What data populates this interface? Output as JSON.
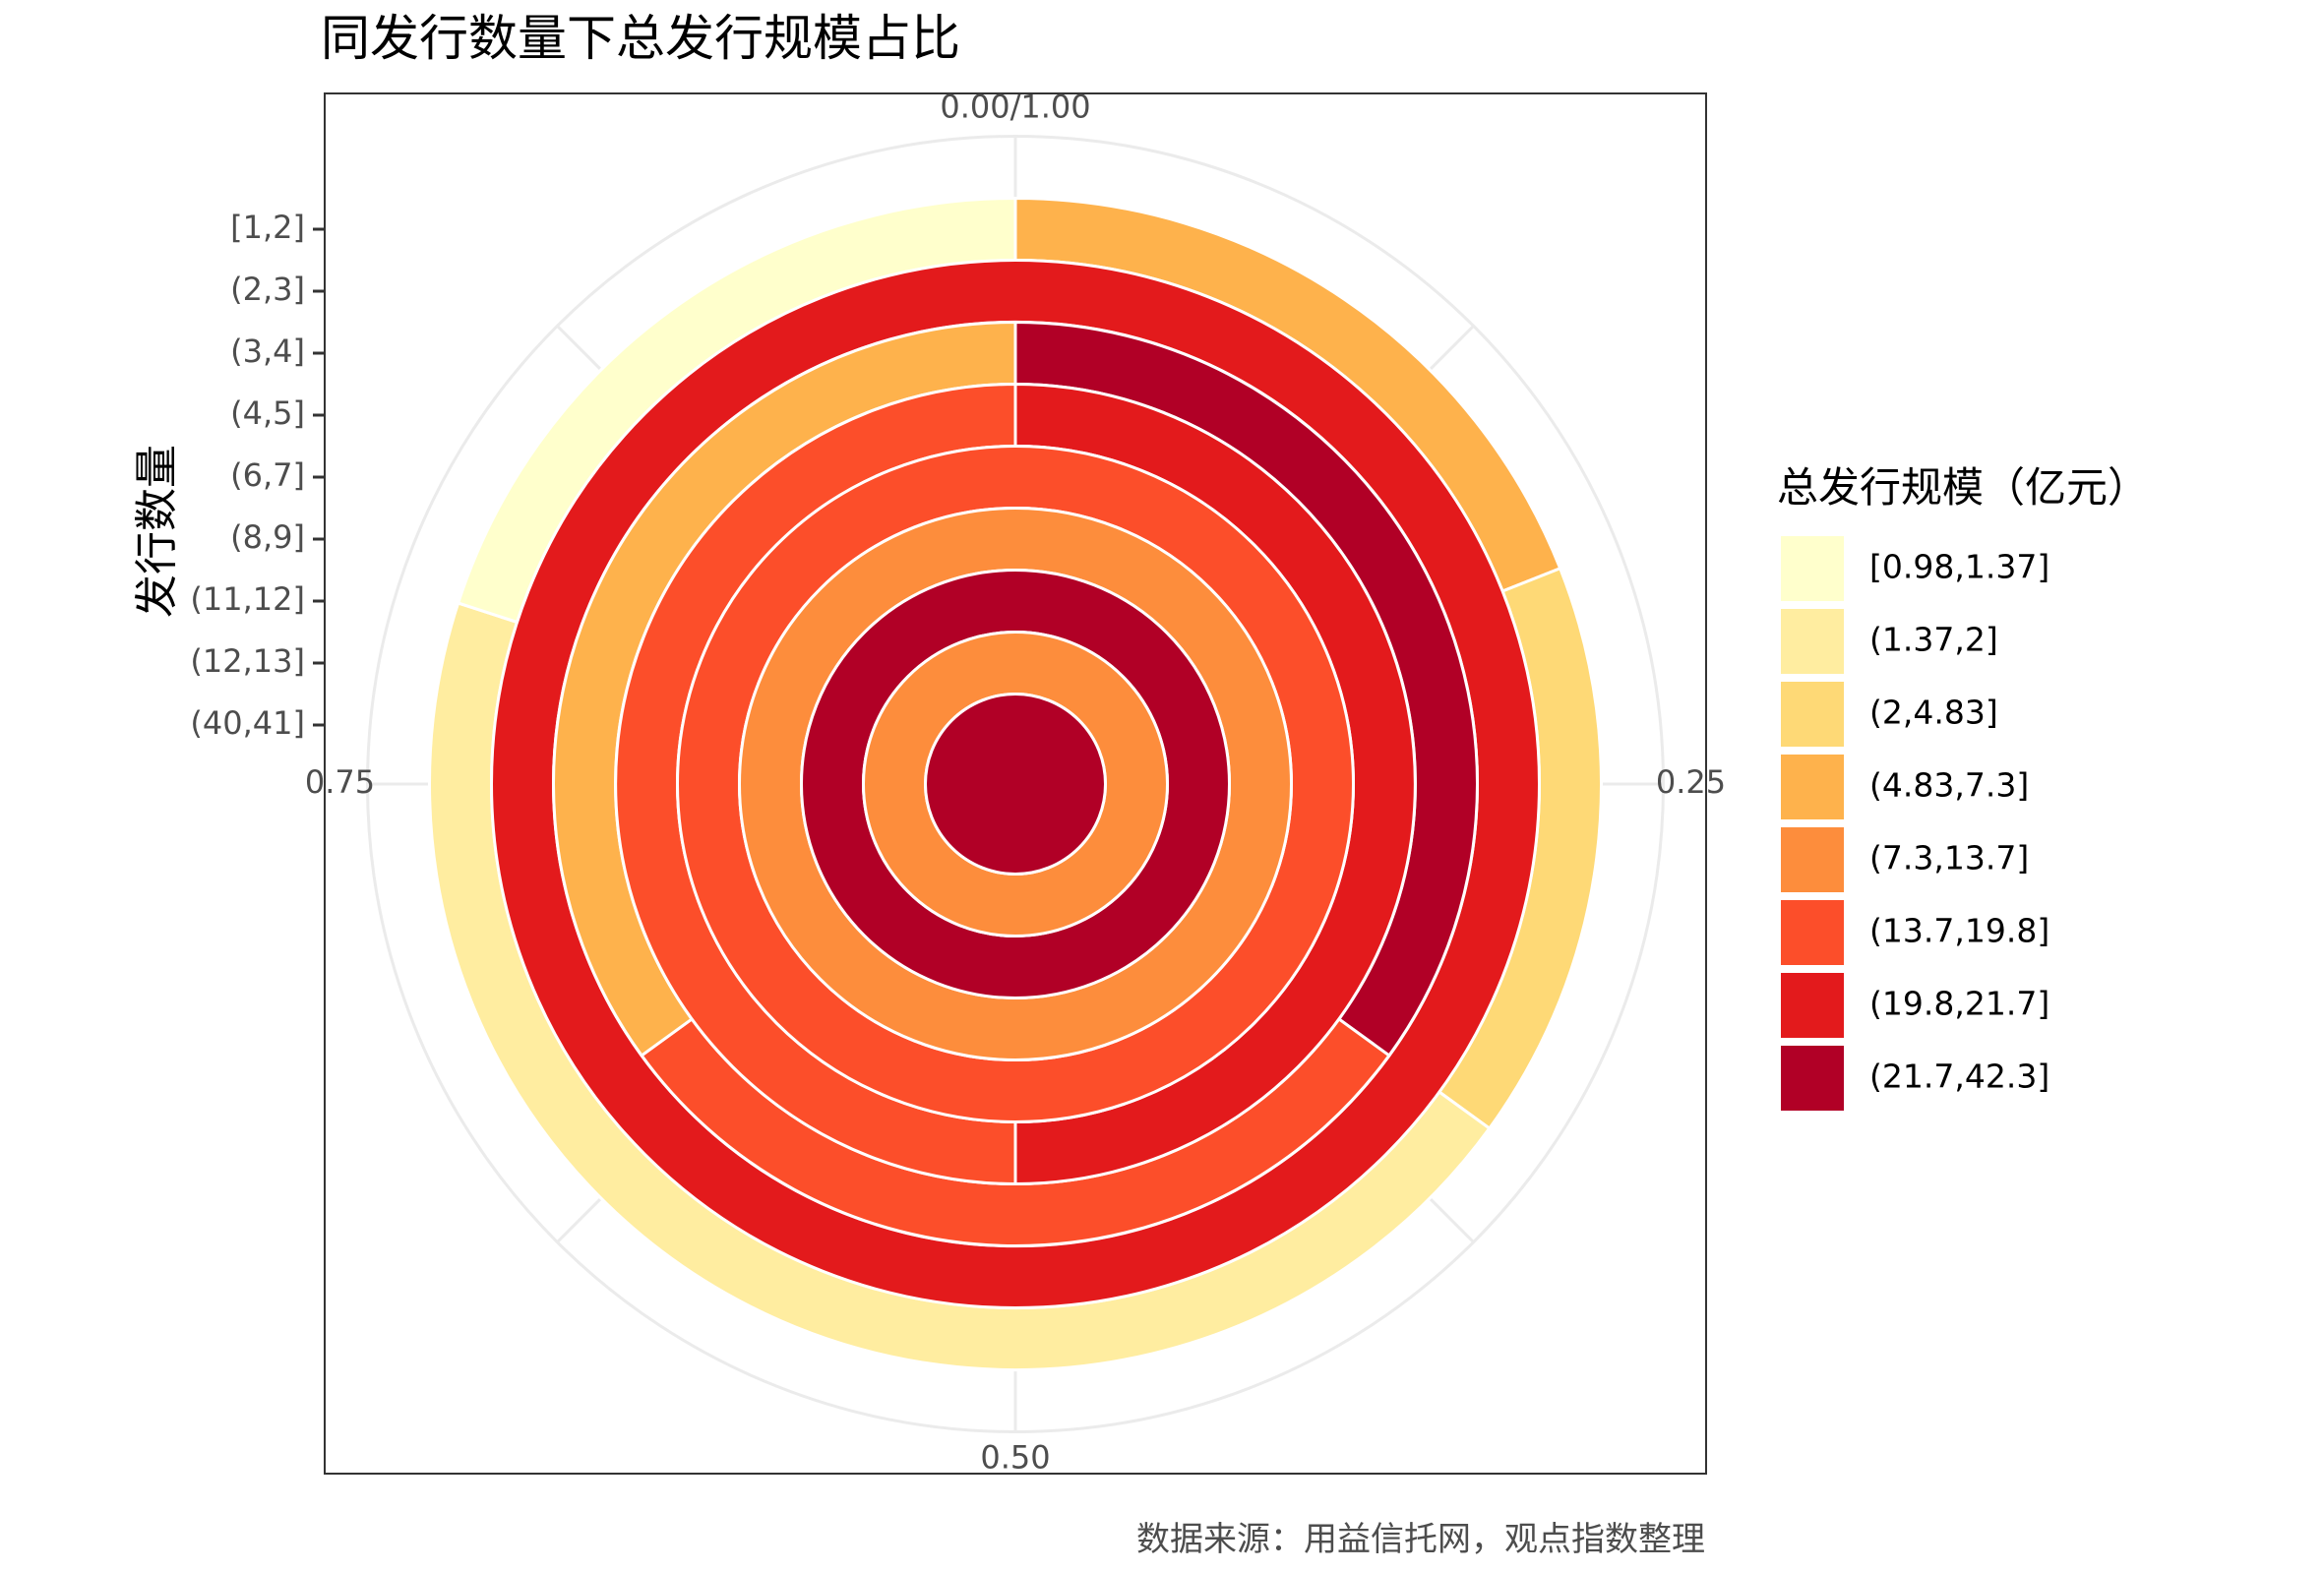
{
  "chart_data": {
    "type": "polar-stacked-bar",
    "title": "同发行数量下总发行规模占比",
    "ylabel": "发行数量",
    "caption": "数据来源：用益信托网，观点指数整理",
    "theta_ticks": [
      "0.00/1.00",
      "0.25",
      "0.50",
      "0.75"
    ],
    "theta_range": [
      0,
      1
    ],
    "grid": true,
    "legend": {
      "title": "总发行规模（亿元）",
      "position": "right",
      "bins": [
        {
          "label": "[0.98,1.37]",
          "color": "#FFFFCC"
        },
        {
          "label": "(1.37,2]",
          "color": "#FFEDA0"
        },
        {
          "label": "(2,4.83]",
          "color": "#FED976"
        },
        {
          "label": "(4.83,7.3]",
          "color": "#FEB24C"
        },
        {
          "label": "(7.3,13.7]",
          "color": "#FD8D3C"
        },
        {
          "label": "(13.7,19.8]",
          "color": "#FC4E2A"
        },
        {
          "label": "(19.8,21.7]",
          "color": "#E31A1C"
        },
        {
          "label": "(21.7,42.3]",
          "color": "#B10026"
        }
      ]
    },
    "categories": [
      "[1,2]",
      "(2,3]",
      "(3,4]",
      "(4,5]",
      "(6,7]",
      "(8,9]",
      "(11,12]",
      "(12,13]",
      "(40,41]"
    ],
    "rings": [
      {
        "category": "[1,2]",
        "segments": [
          {
            "bin": "(4.83,7.3]",
            "share": 0.19
          },
          {
            "bin": "(2,4.83]",
            "share": 0.16
          },
          {
            "bin": "(1.37,2]",
            "share": 0.45
          },
          {
            "bin": "[0.98,1.37]",
            "share": 0.2
          }
        ]
      },
      {
        "category": "(2,3]",
        "segments": [
          {
            "bin": "(19.8,21.7]",
            "share": 1.0
          }
        ]
      },
      {
        "category": "(3,4]",
        "segments": [
          {
            "bin": "(21.7,42.3]",
            "share": 0.35
          },
          {
            "bin": "(13.7,19.8]",
            "share": 0.3
          },
          {
            "bin": "(4.83,7.3]",
            "share": 0.35
          }
        ]
      },
      {
        "category": "(4,5]",
        "segments": [
          {
            "bin": "(19.8,21.7]",
            "share": 0.5
          },
          {
            "bin": "(13.7,19.8]",
            "share": 0.5
          }
        ]
      },
      {
        "category": "(6,7]",
        "segments": [
          {
            "bin": "(13.7,19.8]",
            "share": 1.0
          }
        ]
      },
      {
        "category": "(8,9]",
        "segments": [
          {
            "bin": "(7.3,13.7]",
            "share": 1.0
          }
        ]
      },
      {
        "category": "(11,12]",
        "segments": [
          {
            "bin": "(21.7,42.3]",
            "share": 1.0
          }
        ]
      },
      {
        "category": "(12,13]",
        "segments": [
          {
            "bin": "(7.3,13.7]",
            "share": 1.0
          }
        ]
      },
      {
        "category": "(40,41]",
        "segments": [
          {
            "bin": "(21.7,42.3]",
            "share": 1.0
          }
        ]
      }
    ]
  }
}
